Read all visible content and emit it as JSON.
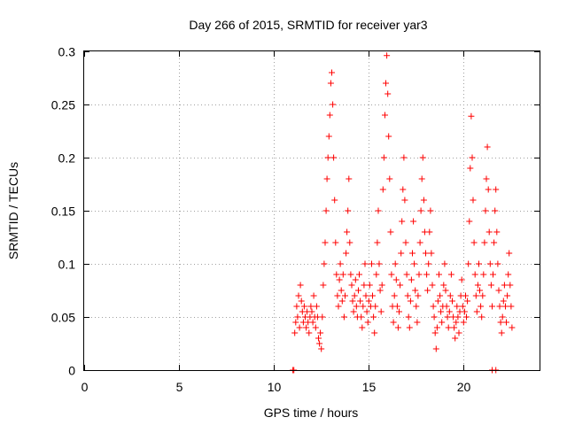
{
  "chart_data": {
    "type": "scatter",
    "title": "Day 266 of 2015, SRMTID for receiver yar3",
    "xlabel": "GPS time / hours",
    "ylabel": "SRMTID / TECUs",
    "xlim": [
      0,
      24
    ],
    "ylim": [
      0,
      0.3
    ],
    "x_ticks": [
      "0",
      "5",
      "10",
      "15",
      "20"
    ],
    "x_tick_values": [
      0,
      5,
      10,
      15,
      20
    ],
    "y_ticks": [
      "0",
      "0.05",
      "0.1",
      "0.15",
      "0.2",
      "0.25",
      "0.3"
    ],
    "y_tick_values": [
      0,
      0.05,
      0.1,
      0.15,
      0.2,
      0.25,
      0.3
    ],
    "grid": true,
    "marker": "plus",
    "series": [
      {
        "name": "yar3",
        "color": "#ff0000",
        "points": [
          [
            11.0,
            0.0
          ],
          [
            11.05,
            0.0
          ],
          [
            21.5,
            0.0
          ],
          [
            21.7,
            0.0
          ],
          [
            11.1,
            0.035
          ],
          [
            11.15,
            0.045
          ],
          [
            11.2,
            0.06
          ],
          [
            11.25,
            0.05
          ],
          [
            11.3,
            0.07
          ],
          [
            11.35,
            0.04
          ],
          [
            11.4,
            0.08
          ],
          [
            11.45,
            0.065
          ],
          [
            11.5,
            0.055
          ],
          [
            11.55,
            0.045
          ],
          [
            11.6,
            0.06
          ],
          [
            11.65,
            0.05
          ],
          [
            11.7,
            0.04
          ],
          [
            11.75,
            0.055
          ],
          [
            11.8,
            0.045
          ],
          [
            11.85,
            0.035
          ],
          [
            11.9,
            0.05
          ],
          [
            11.95,
            0.06
          ],
          [
            12.0,
            0.055
          ],
          [
            12.05,
            0.045
          ],
          [
            12.1,
            0.07
          ],
          [
            12.15,
            0.05
          ],
          [
            12.2,
            0.04
          ],
          [
            12.25,
            0.06
          ],
          [
            12.3,
            0.05
          ],
          [
            12.35,
            0.03
          ],
          [
            12.4,
            0.025
          ],
          [
            12.45,
            0.035
          ],
          [
            12.5,
            0.02
          ],
          [
            12.55,
            0.05
          ],
          [
            12.6,
            0.08
          ],
          [
            12.65,
            0.1
          ],
          [
            12.7,
            0.12
          ],
          [
            12.75,
            0.15
          ],
          [
            12.8,
            0.18
          ],
          [
            12.85,
            0.2
          ],
          [
            12.9,
            0.22
          ],
          [
            12.95,
            0.24
          ],
          [
            13.0,
            0.27
          ],
          [
            13.05,
            0.28
          ],
          [
            13.1,
            0.25
          ],
          [
            13.15,
            0.2
          ],
          [
            13.2,
            0.16
          ],
          [
            13.25,
            0.12
          ],
          [
            13.3,
            0.09
          ],
          [
            13.35,
            0.07
          ],
          [
            13.4,
            0.06
          ],
          [
            13.45,
            0.085
          ],
          [
            13.5,
            0.1
          ],
          [
            13.55,
            0.075
          ],
          [
            13.6,
            0.065
          ],
          [
            13.65,
            0.09
          ],
          [
            13.7,
            0.05
          ],
          [
            13.75,
            0.07
          ],
          [
            13.8,
            0.11
          ],
          [
            13.85,
            0.13
          ],
          [
            13.9,
            0.15
          ],
          [
            13.95,
            0.18
          ],
          [
            14.0,
            0.12
          ],
          [
            14.05,
            0.09
          ],
          [
            14.1,
            0.08
          ],
          [
            14.15,
            0.065
          ],
          [
            14.2,
            0.055
          ],
          [
            14.25,
            0.07
          ],
          [
            14.3,
            0.085
          ],
          [
            14.35,
            0.06
          ],
          [
            14.4,
            0.05
          ],
          [
            14.45,
            0.075
          ],
          [
            14.5,
            0.09
          ],
          [
            14.55,
            0.065
          ],
          [
            14.6,
            0.05
          ],
          [
            14.65,
            0.04
          ],
          [
            14.7,
            0.06
          ],
          [
            14.75,
            0.08
          ],
          [
            14.8,
            0.1
          ],
          [
            14.85,
            0.07
          ],
          [
            14.9,
            0.055
          ],
          [
            14.95,
            0.045
          ],
          [
            15.0,
            0.065
          ],
          [
            15.05,
            0.08
          ],
          [
            15.1,
            0.06
          ],
          [
            15.15,
            0.1
          ],
          [
            15.2,
            0.07
          ],
          [
            15.25,
            0.05
          ],
          [
            15.3,
            0.035
          ],
          [
            15.35,
            0.06
          ],
          [
            15.4,
            0.09
          ],
          [
            15.45,
            0.12
          ],
          [
            15.5,
            0.15
          ],
          [
            15.55,
            0.1
          ],
          [
            15.6,
            0.075
          ],
          [
            15.65,
            0.055
          ],
          [
            15.7,
            0.08
          ],
          [
            15.75,
            0.17
          ],
          [
            15.8,
            0.2
          ],
          [
            15.85,
            0.24
          ],
          [
            15.9,
            0.27
          ],
          [
            15.95,
            0.296
          ],
          [
            16.0,
            0.26
          ],
          [
            16.05,
            0.22
          ],
          [
            16.1,
            0.18
          ],
          [
            16.15,
            0.13
          ],
          [
            16.2,
            0.09
          ],
          [
            16.25,
            0.06
          ],
          [
            16.3,
            0.045
          ],
          [
            16.35,
            0.07
          ],
          [
            16.4,
            0.1
          ],
          [
            16.45,
            0.085
          ],
          [
            16.5,
            0.06
          ],
          [
            16.55,
            0.04
          ],
          [
            16.6,
            0.055
          ],
          [
            16.65,
            0.08
          ],
          [
            16.7,
            0.11
          ],
          [
            16.75,
            0.14
          ],
          [
            16.8,
            0.17
          ],
          [
            16.85,
            0.2
          ],
          [
            16.9,
            0.16
          ],
          [
            16.95,
            0.12
          ],
          [
            17.0,
            0.09
          ],
          [
            17.05,
            0.07
          ],
          [
            17.1,
            0.05
          ],
          [
            17.15,
            0.04
          ],
          [
            17.2,
            0.065
          ],
          [
            17.25,
            0.085
          ],
          [
            17.3,
            0.11
          ],
          [
            17.35,
            0.14
          ],
          [
            17.4,
            0.1
          ],
          [
            17.45,
            0.075
          ],
          [
            17.5,
            0.06
          ],
          [
            17.55,
            0.045
          ],
          [
            17.6,
            0.07
          ],
          [
            17.65,
            0.09
          ],
          [
            17.7,
            0.12
          ],
          [
            17.75,
            0.15
          ],
          [
            17.8,
            0.18
          ],
          [
            17.85,
            0.2
          ],
          [
            17.9,
            0.16
          ],
          [
            17.95,
            0.13
          ],
          [
            18.0,
            0.11
          ],
          [
            18.05,
            0.09
          ],
          [
            18.1,
            0.075
          ],
          [
            18.15,
            0.1
          ],
          [
            18.2,
            0.13
          ],
          [
            18.25,
            0.15
          ],
          [
            18.3,
            0.11
          ],
          [
            18.35,
            0.08
          ],
          [
            18.4,
            0.06
          ],
          [
            18.45,
            0.05
          ],
          [
            18.5,
            0.035
          ],
          [
            18.55,
            0.02
          ],
          [
            18.6,
            0.04
          ],
          [
            18.65,
            0.065
          ],
          [
            18.7,
            0.09
          ],
          [
            18.75,
            0.07
          ],
          [
            18.8,
            0.055
          ],
          [
            18.85,
            0.045
          ],
          [
            18.9,
            0.06
          ],
          [
            18.95,
            0.08
          ],
          [
            19.0,
            0.1
          ],
          [
            19.05,
            0.075
          ],
          [
            19.1,
            0.06
          ],
          [
            19.15,
            0.05
          ],
          [
            19.2,
            0.04
          ],
          [
            19.25,
            0.055
          ],
          [
            19.3,
            0.07
          ],
          [
            19.35,
            0.09
          ],
          [
            19.4,
            0.065
          ],
          [
            19.45,
            0.05
          ],
          [
            19.5,
            0.04
          ],
          [
            19.55,
            0.03
          ],
          [
            19.6,
            0.045
          ],
          [
            19.65,
            0.06
          ],
          [
            19.7,
            0.05
          ],
          [
            19.75,
            0.035
          ],
          [
            19.8,
            0.055
          ],
          [
            19.85,
            0.07
          ],
          [
            19.9,
            0.085
          ],
          [
            19.95,
            0.06
          ],
          [
            20.0,
            0.045
          ],
          [
            20.05,
            0.055
          ],
          [
            20.1,
            0.07
          ],
          [
            20.15,
            0.05
          ],
          [
            20.2,
            0.065
          ],
          [
            20.25,
            0.1
          ],
          [
            20.3,
            0.14
          ],
          [
            20.35,
            0.19
          ],
          [
            20.4,
            0.239
          ],
          [
            20.45,
            0.2
          ],
          [
            20.5,
            0.16
          ],
          [
            20.55,
            0.12
          ],
          [
            20.6,
            0.09
          ],
          [
            20.65,
            0.07
          ],
          [
            20.7,
            0.055
          ],
          [
            20.75,
            0.08
          ],
          [
            20.8,
            0.1
          ],
          [
            20.85,
            0.075
          ],
          [
            20.9,
            0.06
          ],
          [
            20.95,
            0.05
          ],
          [
            21.0,
            0.07
          ],
          [
            21.05,
            0.09
          ],
          [
            21.1,
            0.12
          ],
          [
            21.15,
            0.15
          ],
          [
            21.2,
            0.18
          ],
          [
            21.25,
            0.21
          ],
          [
            21.3,
            0.17
          ],
          [
            21.35,
            0.13
          ],
          [
            21.4,
            0.1
          ],
          [
            21.45,
            0.08
          ],
          [
            21.5,
            0.06
          ],
          [
            21.55,
            0.09
          ],
          [
            21.6,
            0.12
          ],
          [
            21.65,
            0.15
          ],
          [
            21.7,
            0.17
          ],
          [
            21.75,
            0.13
          ],
          [
            21.8,
            0.1
          ],
          [
            21.85,
            0.075
          ],
          [
            21.9,
            0.06
          ],
          [
            21.95,
            0.045
          ],
          [
            22.0,
            0.035
          ],
          [
            22.05,
            0.05
          ],
          [
            22.1,
            0.065
          ],
          [
            22.15,
            0.08
          ],
          [
            22.2,
            0.06
          ],
          [
            22.25,
            0.045
          ],
          [
            22.3,
            0.07
          ],
          [
            22.35,
            0.09
          ],
          [
            22.4,
            0.11
          ],
          [
            22.45,
            0.08
          ],
          [
            22.5,
            0.06
          ],
          [
            22.55,
            0.04
          ]
        ]
      }
    ]
  }
}
